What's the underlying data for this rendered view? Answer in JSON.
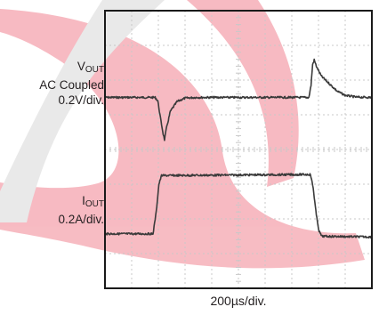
{
  "chart_data": {
    "type": "line",
    "title": "",
    "xlabel": "200µs/div.",
    "x_div_unit": "200µs/div.",
    "grid": true,
    "grid_divisions": {
      "x": 10,
      "y": 8
    },
    "series": [
      {
        "name": "VOUT",
        "label_main": "V",
        "label_sub": "OUT",
        "label_line2": "AC Coupled",
        "label_line3": "0.2V/div.",
        "scale": "0.2V/div.",
        "color": "#3a3a3a",
        "points": [
          [
            0,
            2.5
          ],
          [
            1.88,
            2.5
          ],
          [
            1.98,
            2.6
          ],
          [
            2.08,
            3.1
          ],
          [
            2.18,
            3.55
          ],
          [
            2.23,
            3.72
          ],
          [
            2.3,
            3.4
          ],
          [
            2.45,
            2.9
          ],
          [
            2.7,
            2.62
          ],
          [
            3.0,
            2.52
          ],
          [
            3.4,
            2.5
          ],
          [
            7.64,
            2.5
          ],
          [
            7.72,
            2.15
          ],
          [
            7.78,
            1.55
          ],
          [
            7.84,
            1.42
          ],
          [
            7.92,
            1.6
          ],
          [
            8.1,
            1.88
          ],
          [
            8.4,
            2.1
          ],
          [
            8.7,
            2.32
          ],
          [
            9.0,
            2.44
          ],
          [
            9.4,
            2.49
          ],
          [
            10,
            2.5
          ]
        ]
      },
      {
        "name": "IOUT",
        "label_main": "I",
        "label_sub": "OUT",
        "label_line2": "0.2A/div.",
        "scale": "0.2A/div.",
        "color": "#3a3a3a",
        "points": [
          [
            0,
            6.43
          ],
          [
            1.8,
            6.43
          ],
          [
            1.92,
            5.8
          ],
          [
            2.02,
            5.0
          ],
          [
            2.12,
            4.75
          ],
          [
            2.25,
            4.75
          ],
          [
            7.7,
            4.72
          ],
          [
            7.8,
            5.1
          ],
          [
            7.92,
            5.9
          ],
          [
            8.02,
            6.35
          ],
          [
            8.12,
            6.5
          ],
          [
            10,
            6.52
          ]
        ]
      }
    ],
    "colors": {
      "grid": "#c8c8c8",
      "frame": "#1a1a1a",
      "trace": "#3a3a3a",
      "logo_red": "#e30d27",
      "logo_gray": "#b4b4b4"
    }
  }
}
